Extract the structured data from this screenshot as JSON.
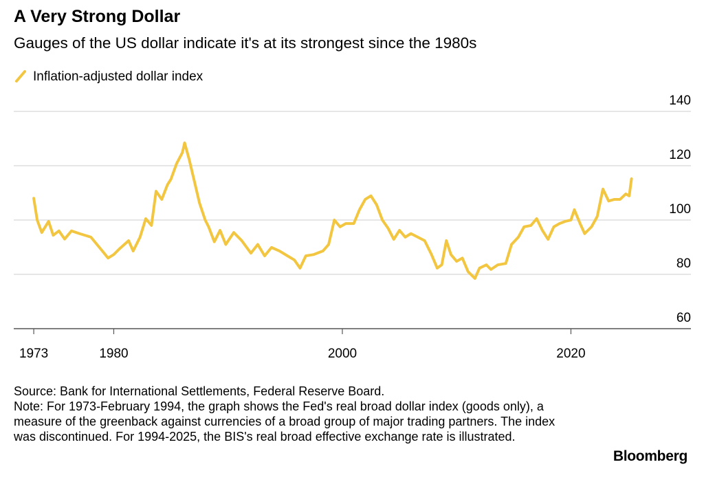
{
  "chart_data": {
    "type": "line",
    "title": "A Very Strong Dollar",
    "subtitle": "Gauges of the US dollar indicate it's at its strongest since the 1980s",
    "source": "Source: Bank for International Settlements, Federal Reserve Board.",
    "note": "Note: For 1973-February 1994, the graph shows the Fed's real broad dollar index (goods only), a measure of the greenback against currencies of a broad group of major trading partners. The index was discontinued. For 1994-2025, the BIS's real broad effective exchange rate is illustrated.",
    "brand": "Bloomberg",
    "xlim": [
      1971.25,
      2030.5
    ],
    "xticks": [
      1973,
      1980,
      2000,
      2020
    ],
    "ylim": [
      60,
      140
    ],
    "yticks": [
      60,
      80,
      100,
      120,
      140
    ],
    "grid": true,
    "x": [
      1973.0,
      1973.3,
      1973.7,
      1974.3,
      1974.7,
      1975.2,
      1975.7,
      1976.3,
      1977.0,
      1978.0,
      1979.0,
      1979.5,
      1980.0,
      1980.5,
      1981.3,
      1981.7,
      1982.3,
      1982.8,
      1983.3,
      1983.7,
      1984.2,
      1984.7,
      1985.0,
      1985.5,
      1986.0,
      1986.2,
      1986.6,
      1987.0,
      1987.5,
      1988.0,
      1988.3,
      1988.8,
      1989.3,
      1989.8,
      1990.5,
      1991.2,
      1992.0,
      1992.6,
      1993.2,
      1993.8,
      1994.5,
      1995.2,
      1995.8,
      1996.3,
      1996.8,
      1997.5,
      1998.3,
      1998.8,
      1999.3,
      1999.8,
      2000.3,
      2001.0,
      2001.5,
      2002.0,
      2002.5,
      2003.0,
      2003.5,
      2004.0,
      2004.5,
      2005.0,
      2005.5,
      2006.0,
      2006.6,
      2007.2,
      2007.8,
      2008.3,
      2008.7,
      2009.1,
      2009.5,
      2010.0,
      2010.5,
      2011.0,
      2011.6,
      2012.0,
      2012.6,
      2013.0,
      2013.6,
      2014.3,
      2014.8,
      2015.4,
      2015.9,
      2016.5,
      2017.0,
      2017.5,
      2018.0,
      2018.5,
      2019.0,
      2019.5,
      2020.0,
      2020.3,
      2020.8,
      2021.2,
      2021.8,
      2022.3,
      2022.8,
      2023.3,
      2023.8,
      2024.3,
      2024.8,
      2025.1,
      2025.3
    ],
    "series": [
      {
        "name": "Inflation-adjusted dollar index",
        "color": "#f2c640",
        "values": [
          108,
          100,
          95.4,
          99.5,
          94.4,
          96,
          93,
          96,
          95,
          93.7,
          88.6,
          86,
          87.3,
          89.4,
          92.4,
          88.6,
          93.7,
          100.5,
          98,
          110.6,
          107.6,
          113,
          115,
          120.8,
          124.8,
          128.4,
          122.3,
          115.2,
          106.3,
          100,
          97.5,
          92,
          96.2,
          91,
          95.4,
          92.4,
          87.8,
          91,
          86.8,
          89.9,
          88.6,
          86.8,
          85.3,
          82.3,
          86.8,
          87.3,
          88.6,
          91,
          100,
          97.5,
          98.7,
          98.7,
          103.8,
          107.6,
          108.9,
          105.6,
          100,
          97,
          92.9,
          96.2,
          93.7,
          95,
          93.7,
          92.4,
          87.3,
          82.3,
          83.5,
          92.4,
          87.3,
          84.8,
          86,
          81,
          78.5,
          82.3,
          83.5,
          81.8,
          83.5,
          84,
          91,
          93.7,
          97.5,
          98,
          100.5,
          96.2,
          92.9,
          97.5,
          98.7,
          99.5,
          100,
          103.8,
          98.7,
          95,
          97.5,
          101.3,
          111.4,
          107,
          107.6,
          107.6,
          109.6,
          108.9,
          115.2
        ]
      }
    ]
  }
}
